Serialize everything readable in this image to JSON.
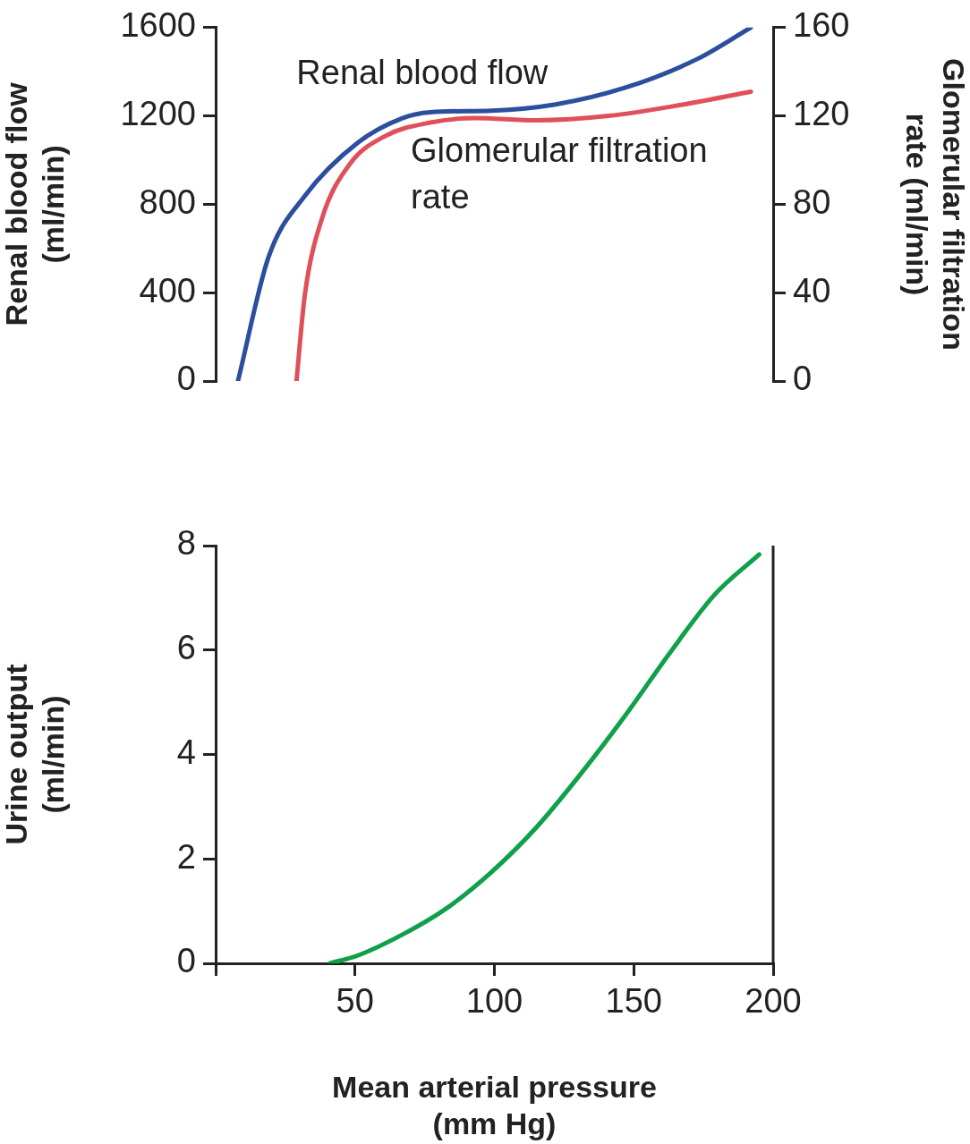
{
  "chart_data": [
    {
      "type": "line",
      "xlim": [
        0,
        200
      ],
      "ylim": [
        0,
        1600
      ],
      "yticks": [
        0,
        400,
        800,
        1200,
        1600
      ],
      "y2lim": [
        0,
        160
      ],
      "y2ticks": [
        0,
        40,
        80,
        120,
        160
      ],
      "ylabel": "Renal blood flow\n(ml/min)",
      "y2label": "Glomerular filtration\nrate (ml/min)",
      "tick_labels": "y",
      "grid": false,
      "legend": false,
      "series": [
        {
          "name": "Renal blood flow",
          "color": "#2b4f9e",
          "x": [
            8,
            19,
            32,
            51,
            67,
            77,
            99,
            122,
            147,
            173,
            192
          ],
          "values": [
            0,
            562,
            838,
            1079,
            1190,
            1217,
            1224,
            1252,
            1328,
            1459,
            1600
          ]
        },
        {
          "name": "Glomerular filtration rate",
          "color": "#e0505a",
          "axis": "y2",
          "x": [
            29,
            32,
            38,
            48,
            61,
            77,
            93,
            115,
            141,
            167,
            192
          ],
          "values": [
            0,
            39,
            73,
            98,
            111,
            117,
            119,
            118,
            120,
            125,
            131
          ]
        }
      ]
    },
    {
      "type": "line",
      "xlim": [
        0,
        200
      ],
      "xticks": [
        {
          "value": 0,
          "label": null
        },
        50,
        100,
        150,
        200
      ],
      "ylim": [
        0,
        8
      ],
      "yticks": [
        0,
        2,
        4,
        6,
        8
      ],
      "xlabel": "Mean arterial pressure\n(mm Hg)",
      "ylabel": "Urine output\n(ml/min)",
      "grid": false,
      "legend": false,
      "series": [
        {
          "color": "#11a04a",
          "x": [
            41,
            51,
            67,
            83,
            99,
            115,
            131,
            147,
            163,
            179,
            195
          ],
          "values": [
            0,
            0.15,
            0.55,
            1.06,
            1.75,
            2.6,
            3.63,
            4.75,
            5.95,
            7.06,
            7.83
          ]
        }
      ]
    }
  ]
}
